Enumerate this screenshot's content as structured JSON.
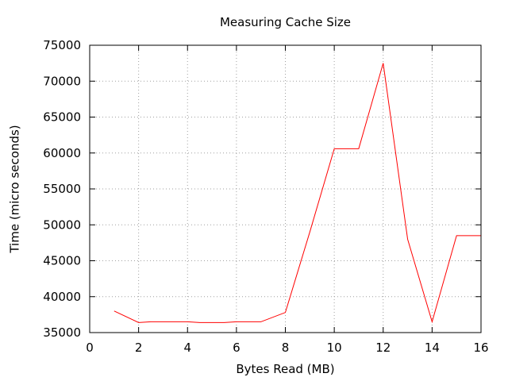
{
  "chart_data": {
    "type": "line",
    "title": "Measuring Cache Size",
    "xlabel": "Bytes Read (MB)",
    "ylabel": "Time (micro seconds)",
    "xlim": [
      0,
      16
    ],
    "ylim": [
      35000,
      75000
    ],
    "xticks": [
      0,
      2,
      4,
      6,
      8,
      10,
      12,
      14,
      16
    ],
    "yticks": [
      35000,
      40000,
      45000,
      50000,
      55000,
      60000,
      65000,
      70000,
      75000
    ],
    "grid": true,
    "series": [
      {
        "color": "#ff0000",
        "x": [
          1,
          2,
          2.5,
          3,
          4,
          4.5,
          5,
          5.5,
          6,
          7,
          8,
          9,
          10,
          11,
          12,
          13,
          14,
          15,
          16
        ],
        "y": [
          38000,
          36400,
          36500,
          36500,
          36500,
          36400,
          36400,
          36400,
          36500,
          36500,
          37800,
          49000,
          60600,
          60600,
          72500,
          48000,
          36500,
          48500,
          48500
        ]
      }
    ]
  }
}
